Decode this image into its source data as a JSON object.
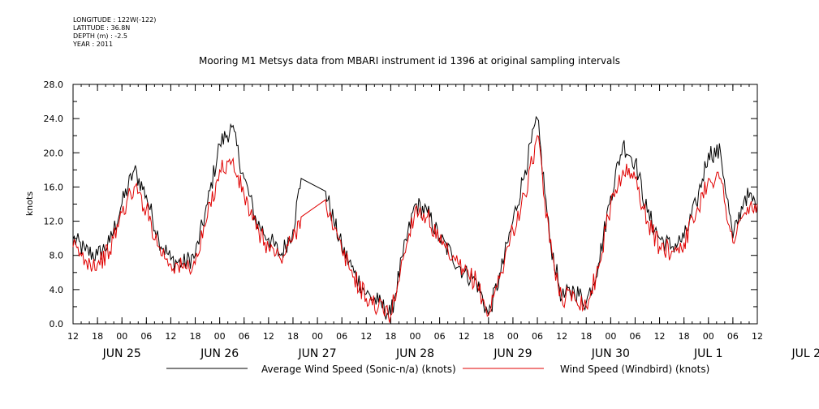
{
  "meta": {
    "longitude": "LONGITUDE : 122W(-122)",
    "latitude": "LATITUDE : 36.8N",
    "depth": "DEPTH (m) : -2.5",
    "year": "YEAR : 2011"
  },
  "chart_data": {
    "type": "line",
    "title": "Mooring M1 Metsys data from MBARI instrument id 1396 at original sampling intervals",
    "xlabel": "",
    "ylabel": "knots",
    "xlim": [
      "2011-06-25T12:00",
      "2011-07-02T12:00"
    ],
    "ylim": [
      0,
      28
    ],
    "yticks": [
      0.0,
      4.0,
      8.0,
      12.0,
      16.0,
      20.0,
      24.0,
      28.0
    ],
    "ytick_labels": [
      "0.0",
      "4.0",
      "8.0",
      "12.0",
      "16.0",
      "20.0",
      "24.0",
      "28.0"
    ],
    "xtick_hour_labels": [
      "12",
      "18",
      "00",
      "06",
      "12",
      "18",
      "00",
      "06",
      "12",
      "18",
      "00",
      "06",
      "12",
      "18",
      "00",
      "06",
      "12",
      "18",
      "00",
      "06",
      "12",
      "18",
      "00",
      "06",
      "12",
      "18",
      "00",
      "06",
      "12"
    ],
    "date_labels": [
      "JUN 25",
      "JUN 26",
      "JUN 27",
      "JUN 28",
      "JUN 29",
      "JUN 30",
      "JUL  1",
      "JUL  2"
    ],
    "legend_placement": "bottom",
    "series": [
      {
        "name": "Average Wind Speed (Sonic-n/a) (knots)",
        "color": "#000000",
        "x": [
          "2011-06-25T12:00",
          "2011-06-25T15:00",
          "2011-06-25T18:00",
          "2011-06-25T21:00",
          "2011-06-26T00:00",
          "2011-06-26T03:00",
          "2011-06-26T06:00",
          "2011-06-26T09:00",
          "2011-06-26T12:00",
          "2011-06-26T15:00",
          "2011-06-26T18:00",
          "2011-06-26T21:00",
          "2011-06-27T00:00",
          "2011-06-27T03:00",
          "2011-06-27T06:00",
          "2011-06-27T09:00",
          "2011-06-27T12:00",
          "2011-06-27T15:00",
          "2011-06-27T18:00",
          "2011-06-27T20:00",
          "2011-06-28T02:00",
          "2011-06-28T04:00",
          "2011-06-28T06:00",
          "2011-06-28T09:00",
          "2011-06-28T12:00",
          "2011-06-28T15:00",
          "2011-06-28T18:00",
          "2011-06-28T21:00",
          "2011-06-29T00:00",
          "2011-06-29T03:00",
          "2011-06-29T06:00",
          "2011-06-29T09:00",
          "2011-06-29T12:00",
          "2011-06-29T15:00",
          "2011-06-29T18:00",
          "2011-06-29T21:00",
          "2011-06-30T00:00",
          "2011-06-30T03:00",
          "2011-06-30T06:00",
          "2011-06-30T09:00",
          "2011-06-30T12:00",
          "2011-06-30T15:00",
          "2011-06-30T18:00",
          "2011-06-30T21:00",
          "2011-07-01T00:00",
          "2011-07-01T03:00",
          "2011-07-01T06:00",
          "2011-07-01T09:00",
          "2011-07-01T12:00",
          "2011-07-01T15:00",
          "2011-07-01T18:00",
          "2011-07-01T21:00",
          "2011-07-02T00:00",
          "2011-07-02T03:00",
          "2011-07-02T06:00",
          "2011-07-02T09:00",
          "2011-07-02T12:00"
        ],
        "y": [
          10,
          8.5,
          8,
          9.5,
          14,
          18,
          15,
          10,
          7.5,
          7,
          8,
          14,
          21,
          23,
          17,
          12,
          10,
          8,
          11,
          17,
          15.5,
          12,
          9,
          6,
          3.5,
          2.5,
          1,
          8,
          14,
          13,
          10,
          8,
          6,
          5,
          1,
          6,
          12,
          18,
          24,
          10,
          3,
          4,
          2.5,
          7,
          15,
          21,
          19,
          13,
          10,
          9,
          10,
          14,
          20,
          20,
          10,
          15,
          14
        ]
      },
      {
        "name": "Wind Speed (Windbird) (knots)",
        "color": "#e00000",
        "x": [
          "2011-06-25T12:00",
          "2011-06-25T15:00",
          "2011-06-25T18:00",
          "2011-06-25T21:00",
          "2011-06-26T00:00",
          "2011-06-26T03:00",
          "2011-06-26T06:00",
          "2011-06-26T09:00",
          "2011-06-26T12:00",
          "2011-06-26T15:00",
          "2011-06-26T18:00",
          "2011-06-26T21:00",
          "2011-06-27T00:00",
          "2011-06-27T03:00",
          "2011-06-27T06:00",
          "2011-06-27T09:00",
          "2011-06-27T12:00",
          "2011-06-27T15:00",
          "2011-06-27T18:00",
          "2011-06-27T20:00",
          "2011-06-28T02:00",
          "2011-06-28T04:00",
          "2011-06-28T06:00",
          "2011-06-28T09:00",
          "2011-06-28T12:00",
          "2011-06-28T15:00",
          "2011-06-28T18:00",
          "2011-06-28T21:00",
          "2011-06-29T00:00",
          "2011-06-29T03:00",
          "2011-06-29T06:00",
          "2011-06-29T09:00",
          "2011-06-29T12:00",
          "2011-06-29T15:00",
          "2011-06-29T18:00",
          "2011-06-29T21:00",
          "2011-06-30T00:00",
          "2011-06-30T03:00",
          "2011-06-30T06:00",
          "2011-06-30T09:00",
          "2011-06-30T12:00",
          "2011-06-30T15:00",
          "2011-06-30T18:00",
          "2011-06-30T21:00",
          "2011-07-01T00:00",
          "2011-07-01T03:00",
          "2011-07-01T06:00",
          "2011-07-01T09:00",
          "2011-07-01T12:00",
          "2011-07-01T15:00",
          "2011-07-01T18:00",
          "2011-07-01T21:00",
          "2011-07-02T00:00",
          "2011-07-02T03:00",
          "2011-07-02T06:00",
          "2011-07-02T09:00",
          "2011-07-02T12:00"
        ],
        "y": [
          9,
          7.5,
          7,
          8.5,
          13,
          16,
          13.5,
          9,
          7,
          6.5,
          7,
          12.5,
          18,
          19,
          15,
          11,
          9,
          7.5,
          10,
          12.5,
          14.5,
          11,
          8.5,
          5.5,
          3,
          2,
          1,
          7.5,
          13.5,
          12.5,
          9.5,
          7.5,
          6,
          5,
          1,
          6,
          11,
          15,
          22,
          9.5,
          3,
          3.5,
          2,
          6.5,
          14,
          18,
          17,
          12,
          9,
          8.5,
          9.5,
          13,
          17,
          17,
          9.5,
          13,
          14
        ]
      }
    ]
  }
}
